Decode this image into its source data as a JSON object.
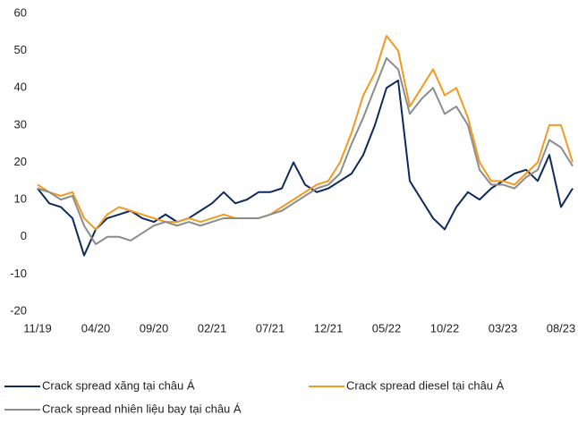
{
  "chart_data": {
    "type": "line",
    "categories": [
      "11/19",
      null,
      null,
      null,
      null,
      "04/20",
      null,
      null,
      null,
      null,
      "09/20",
      null,
      null,
      null,
      null,
      "02/21",
      null,
      null,
      null,
      null,
      "07/21",
      null,
      null,
      null,
      null,
      "12/21",
      null,
      null,
      null,
      null,
      "05/22",
      null,
      null,
      null,
      null,
      "10/22",
      null,
      null,
      null,
      null,
      "03/23",
      null,
      null,
      null,
      null,
      "08/23",
      null
    ],
    "ylim": [
      -20,
      60
    ],
    "yticks": [
      -20,
      -10,
      0,
      10,
      20,
      30,
      40,
      50,
      60
    ],
    "legend": "bottom",
    "series": [
      {
        "name": "Crack spread xăng tại châu Á",
        "color": "#0d2a5c",
        "values": [
          13,
          9,
          8,
          5,
          -5,
          2,
          5,
          6,
          7,
          5,
          4,
          6,
          4,
          5,
          7,
          9,
          12,
          9,
          10,
          12,
          12,
          13,
          20,
          14,
          12,
          13,
          15,
          17,
          22,
          30,
          40,
          42,
          15,
          10,
          5,
          2,
          8,
          12,
          10,
          13,
          15,
          17,
          18,
          15,
          22,
          8,
          13
        ]
      },
      {
        "name": "Crack spread diesel tại châu Á",
        "color": "#f29a1f",
        "values": [
          14,
          12,
          11,
          12,
          5,
          2,
          6,
          8,
          7,
          6,
          5,
          4,
          4,
          5,
          4,
          5,
          6,
          5,
          5,
          5,
          6,
          8,
          10,
          12,
          14,
          15,
          20,
          28,
          38,
          44,
          54,
          50,
          35,
          40,
          45,
          38,
          40,
          32,
          20,
          15,
          15,
          14,
          17,
          20,
          30,
          30,
          20
        ]
      },
      {
        "name": "Crack spread nhiên liệu  bay tại châu Á",
        "color": "#8c8c8c",
        "values": [
          13,
          12,
          10,
          11,
          3,
          -2,
          0,
          0,
          -1,
          1,
          3,
          4,
          3,
          4,
          3,
          4,
          5,
          5,
          5,
          5,
          6,
          7,
          9,
          11,
          13,
          14,
          17,
          25,
          32,
          40,
          48,
          45,
          33,
          37,
          40,
          33,
          35,
          30,
          18,
          14,
          14,
          13,
          16,
          18,
          26,
          24,
          19
        ]
      }
    ]
  }
}
